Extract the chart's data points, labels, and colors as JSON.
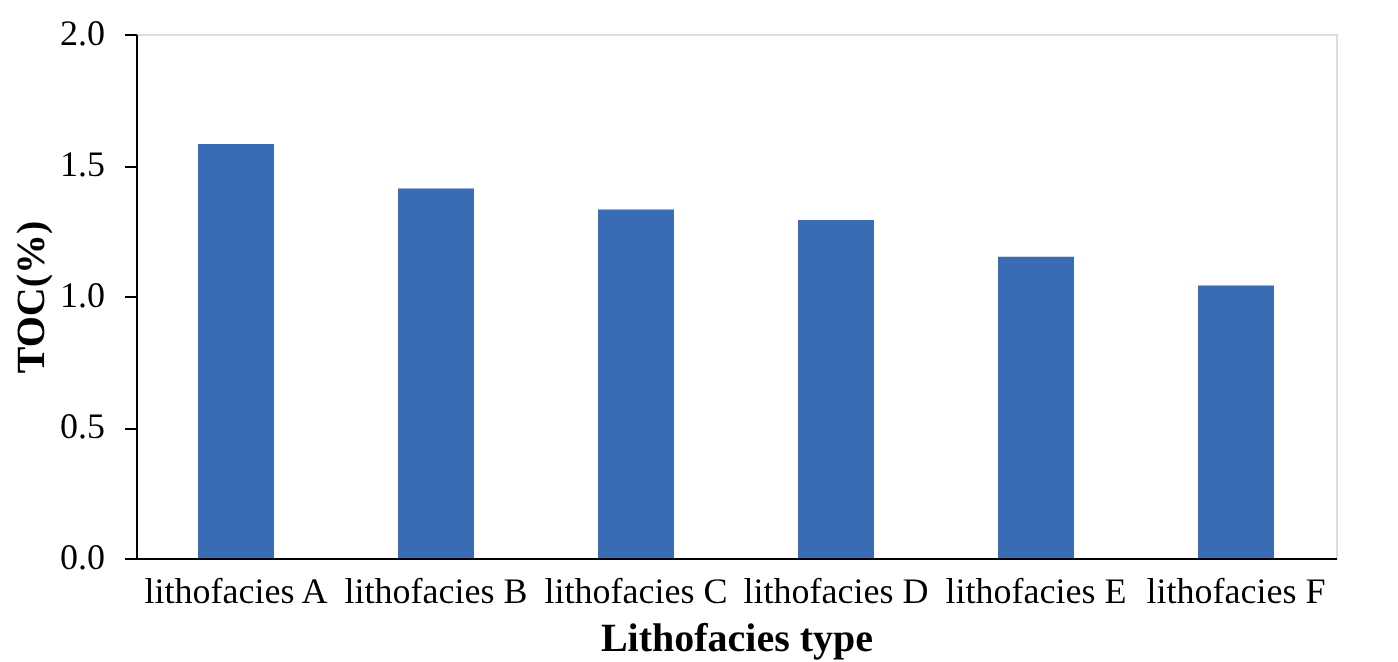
{
  "chart_data": {
    "type": "bar",
    "xlabel": "Lithofacies type",
    "ylabel": "TOC(%)",
    "categories": [
      "lithofacies A",
      "lithofacies B",
      "lithofacies C",
      "lithofacies D",
      "lithofacies E",
      "lithofacies F"
    ],
    "values": [
      1.58,
      1.41,
      1.33,
      1.29,
      1.15,
      1.04
    ],
    "color": "#3a6bb5",
    "ylim": [
      0,
      2.0
    ],
    "yticks": [
      {
        "value": 0,
        "label": "0.0"
      },
      {
        "value": 0.5,
        "label": "0.5"
      },
      {
        "value": 1.0,
        "label": "1.0"
      },
      {
        "value": 1.5,
        "label": "1.5"
      },
      {
        "value": 2.0,
        "label": "2.0"
      }
    ],
    "grid": false
  }
}
